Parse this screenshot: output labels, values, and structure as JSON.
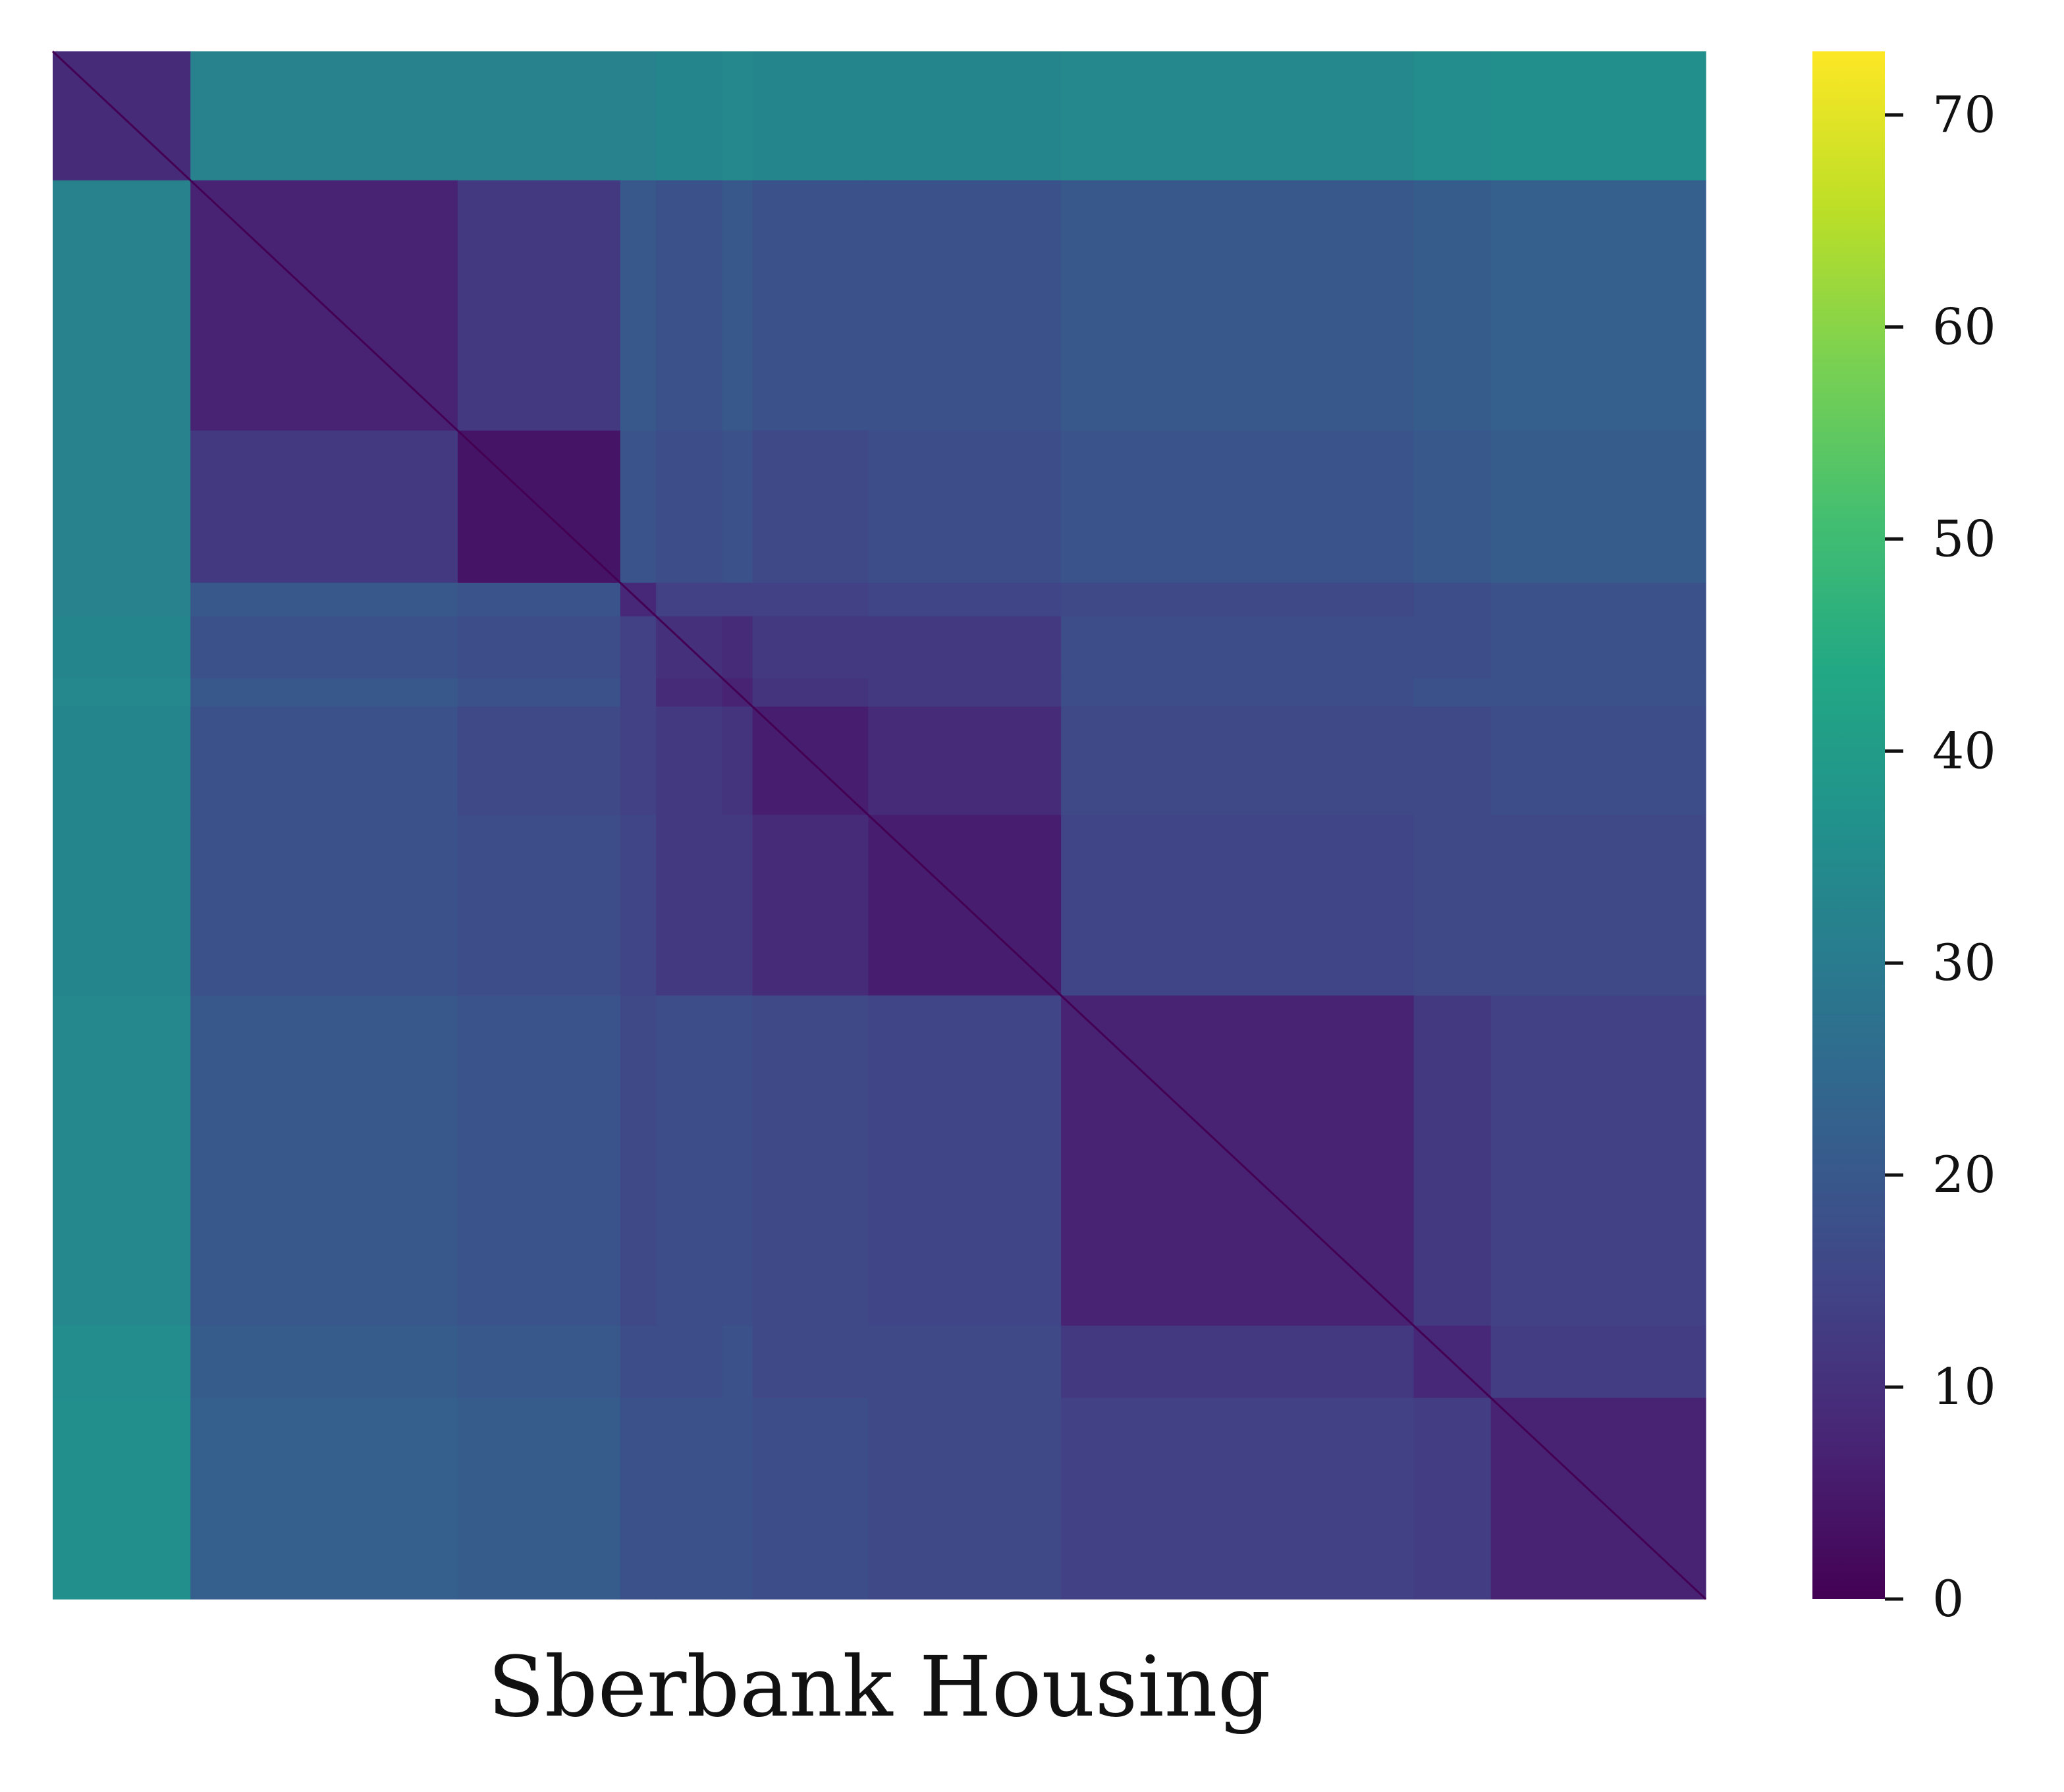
{
  "chart_data": {
    "type": "heatmap",
    "title": "",
    "xlabel": "Sberbank Housing",
    "ylabel": "",
    "grid": false,
    "legend": "colorbar-right",
    "colormap": "viridis",
    "colorbar": {
      "range": [
        0,
        73
      ],
      "ticks": [
        0,
        10,
        20,
        30,
        40,
        50,
        60,
        70
      ],
      "tick_labels": [
        "0",
        "10",
        "20",
        "30",
        "40",
        "50",
        "60",
        "70"
      ]
    },
    "clusters": [
      {
        "id": "C1",
        "start": 0,
        "end": 50,
        "within": 9
      },
      {
        "id": "C2",
        "start": 50,
        "end": 147,
        "within": 7
      },
      {
        "id": "C3",
        "start": 147,
        "end": 206,
        "within": 4
      },
      {
        "id": "C4",
        "start": 206,
        "end": 219,
        "within": 8
      },
      {
        "id": "C5",
        "start": 219,
        "end": 243,
        "within": 10
      },
      {
        "id": "C6",
        "start": 243,
        "end": 254,
        "within": 7
      },
      {
        "id": "C7",
        "start": 254,
        "end": 296,
        "within": 6
      },
      {
        "id": "C8",
        "start": 296,
        "end": 366,
        "within": 6
      },
      {
        "id": "C9",
        "start": 366,
        "end": 494,
        "within": 7
      },
      {
        "id": "C10",
        "start": 494,
        "end": 522,
        "within": 8
      },
      {
        "id": "C11",
        "start": 522,
        "end": 600,
        "within": 7
      }
    ],
    "matrix_size": 600,
    "diagonal_value": 0,
    "between_cluster_values": [
      [
        0,
        32,
        32,
        32,
        33,
        34,
        33,
        33,
        34,
        35,
        36
      ],
      [
        32,
        0,
        12,
        20,
        18,
        20,
        18,
        18,
        20,
        21,
        22
      ],
      [
        32,
        12,
        0,
        19,
        17,
        18,
        16,
        17,
        19,
        20,
        21
      ],
      [
        32,
        20,
        19,
        0,
        14,
        14,
        14,
        15,
        16,
        17,
        18
      ],
      [
        33,
        18,
        17,
        14,
        0,
        9,
        12,
        12,
        17,
        17,
        18
      ],
      [
        34,
        20,
        18,
        14,
        9,
        0,
        11,
        12,
        17,
        18,
        18
      ],
      [
        33,
        18,
        16,
        14,
        12,
        11,
        0,
        9,
        16,
        16,
        17
      ],
      [
        33,
        18,
        17,
        15,
        12,
        12,
        9,
        0,
        15,
        16,
        16
      ],
      [
        34,
        20,
        19,
        16,
        17,
        17,
        16,
        15,
        0,
        12,
        14
      ],
      [
        35,
        21,
        20,
        17,
        17,
        18,
        16,
        16,
        12,
        0,
        13
      ],
      [
        36,
        22,
        21,
        18,
        18,
        18,
        17,
        16,
        14,
        13,
        0
      ]
    ]
  }
}
